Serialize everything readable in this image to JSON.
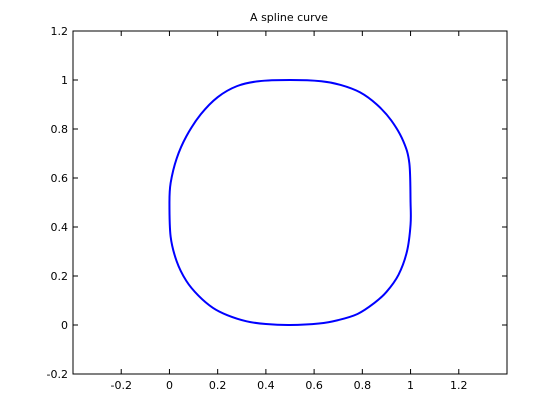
{
  "chart_data": {
    "type": "line",
    "title": "A spline curve",
    "xlabel": "",
    "ylabel": "",
    "xlim": [
      -0.4,
      1.4
    ],
    "ylim": [
      -0.2,
      1.2
    ],
    "xticks": [
      -0.2,
      0,
      0.2,
      0.4,
      0.6,
      0.8,
      1,
      1.2
    ],
    "xtick_labels": [
      "-0.2",
      "0",
      "0.2",
      "0.4",
      "0.6",
      "0.8",
      "1",
      "1.2"
    ],
    "yticks": [
      -0.2,
      0,
      0.2,
      0.4,
      0.6,
      0.8,
      1,
      1.2
    ],
    "ytick_labels": [
      "-0.2",
      "0",
      "0.2",
      "0.4",
      "0.6",
      "0.8",
      "1",
      "1.2"
    ],
    "grid": false,
    "series": [
      {
        "color": "#0000ff",
        "closed": true,
        "points": [
          [
            0.5,
            0.0
          ],
          [
            0.62,
            0.006
          ],
          [
            0.7,
            0.02
          ],
          [
            0.78,
            0.045
          ],
          [
            0.85,
            0.09
          ],
          [
            0.9,
            0.135
          ],
          [
            0.95,
            0.205
          ],
          [
            0.985,
            0.3
          ],
          [
            1.0,
            0.41
          ],
          [
            1.0,
            0.5
          ],
          [
            0.995,
            0.66
          ],
          [
            0.97,
            0.75
          ],
          [
            0.92,
            0.835
          ],
          [
            0.86,
            0.9
          ],
          [
            0.79,
            0.95
          ],
          [
            0.71,
            0.98
          ],
          [
            0.63,
            0.995
          ],
          [
            0.5,
            1.0
          ],
          [
            0.37,
            0.995
          ],
          [
            0.28,
            0.975
          ],
          [
            0.2,
            0.93
          ],
          [
            0.13,
            0.86
          ],
          [
            0.07,
            0.77
          ],
          [
            0.03,
            0.68
          ],
          [
            0.005,
            0.58
          ],
          [
            0.0,
            0.5
          ],
          [
            0.005,
            0.36
          ],
          [
            0.03,
            0.26
          ],
          [
            0.07,
            0.18
          ],
          [
            0.12,
            0.12
          ],
          [
            0.18,
            0.07
          ],
          [
            0.24,
            0.04
          ],
          [
            0.32,
            0.015
          ],
          [
            0.4,
            0.004
          ]
        ]
      }
    ]
  }
}
